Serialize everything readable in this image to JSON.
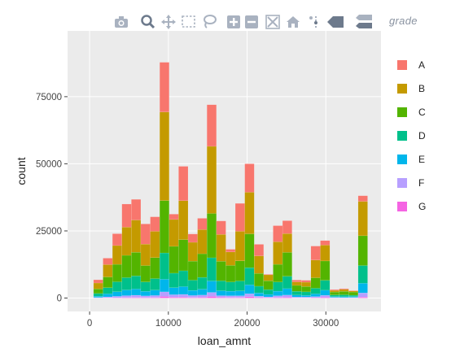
{
  "modebar": {
    "icons": [
      "camera-icon",
      "zoom-icon",
      "pan-icon",
      "box-select-icon",
      "lasso-icon",
      "zoom-in-icon",
      "zoom-out-icon",
      "autoscale-icon",
      "home-icon",
      "spike-lines-icon",
      "hover-closest-icon",
      "hover-compare-icon"
    ],
    "brand": "grade"
  },
  "chart_data": {
    "type": "bar",
    "stacked": true,
    "xlabel": "loan_amnt",
    "ylabel": "count",
    "xlim": [
      -2800,
      37000
    ],
    "ylim": [
      -5000,
      99500
    ],
    "xticks": [
      0,
      10000,
      20000,
      30000
    ],
    "xtick_labels": [
      "0",
      "10000",
      "20000",
      "30000"
    ],
    "yticks": [
      0,
      25000,
      50000,
      75000
    ],
    "ytick_labels": [
      "0",
      "25000",
      "50000",
      "75000"
    ],
    "grid": true,
    "legend_position": "right",
    "bin_width": 1200,
    "bin_centers": [
      1100,
      2300,
      3500,
      4700,
      5900,
      7100,
      8300,
      9500,
      10700,
      11900,
      13100,
      14300,
      15500,
      16700,
      17900,
      19100,
      20300,
      21500,
      22700,
      23900,
      25100,
      26300,
      27500,
      28700,
      29900,
      31100,
      32300,
      33500,
      34700
    ],
    "series": [
      {
        "name": "G",
        "color": "#F564E3",
        "values": [
          50,
          100,
          150,
          200,
          250,
          200,
          250,
          600,
          350,
          350,
          250,
          300,
          600,
          300,
          250,
          250,
          500,
          200,
          150,
          250,
          300,
          100,
          100,
          150,
          300,
          50,
          50,
          50,
          400
        ]
      },
      {
        "name": "F",
        "color": "#B79FFF",
        "values": [
          150,
          350,
          500,
          700,
          800,
          600,
          700,
          1700,
          900,
          1000,
          700,
          800,
          1500,
          600,
          600,
          600,
          1100,
          500,
          300,
          600,
          800,
          300,
          300,
          400,
          700,
          200,
          150,
          200,
          1500
        ]
      },
      {
        "name": "E",
        "color": "#00B6EB",
        "values": [
          500,
          1100,
          1700,
          2100,
          2300,
          1700,
          2000,
          4700,
          2600,
          2900,
          1900,
          2200,
          4200,
          1800,
          1700,
          1800,
          3300,
          1200,
          900,
          1700,
          2400,
          700,
          600,
          1000,
          1900,
          300,
          300,
          300,
          3600
        ]
      },
      {
        "name": "D",
        "color": "#00C08B",
        "values": [
          1000,
          2300,
          3700,
          4600,
          4900,
          3500,
          4300,
          9800,
          5400,
          5900,
          3800,
          4400,
          8700,
          3700,
          3400,
          3700,
          6400,
          2500,
          1800,
          3400,
          4600,
          1400,
          1300,
          2100,
          3700,
          600,
          700,
          500,
          6600
        ]
      },
      {
        "name": "C",
        "color": "#53B400",
        "values": [
          1700,
          4000,
          6500,
          8300,
          8800,
          6100,
          7800,
          19500,
          10000,
          11600,
          7100,
          8800,
          16500,
          7300,
          6200,
          7500,
          12600,
          4800,
          3300,
          6600,
          8900,
          2200,
          2000,
          3900,
          7200,
          1100,
          1300,
          1200,
          11100
        ]
      },
      {
        "name": "B",
        "color": "#C49A00",
        "values": [
          2200,
          4600,
          7000,
          10500,
          12000,
          8000,
          9800,
          33000,
          10000,
          14500,
          7000,
          9000,
          25000,
          10000,
          5000,
          11000,
          15500,
          6500,
          2200,
          8400,
          7000,
          1300,
          1600,
          6600,
          5900,
          600,
          700,
          400,
          12800
        ]
      },
      {
        "name": "A",
        "color": "#F8766D",
        "values": [
          1200,
          2400,
          4400,
          8600,
          7700,
          7500,
          5400,
          18500,
          2000,
          12800,
          3100,
          4200,
          15500,
          5000,
          1000,
          10400,
          10600,
          4300,
          200,
          6000,
          4800,
          700,
          700,
          5200,
          1700,
          300,
          300,
          150,
          2100
        ]
      }
    ],
    "legend_order": [
      "A",
      "B",
      "C",
      "D",
      "E",
      "F",
      "G"
    ]
  }
}
